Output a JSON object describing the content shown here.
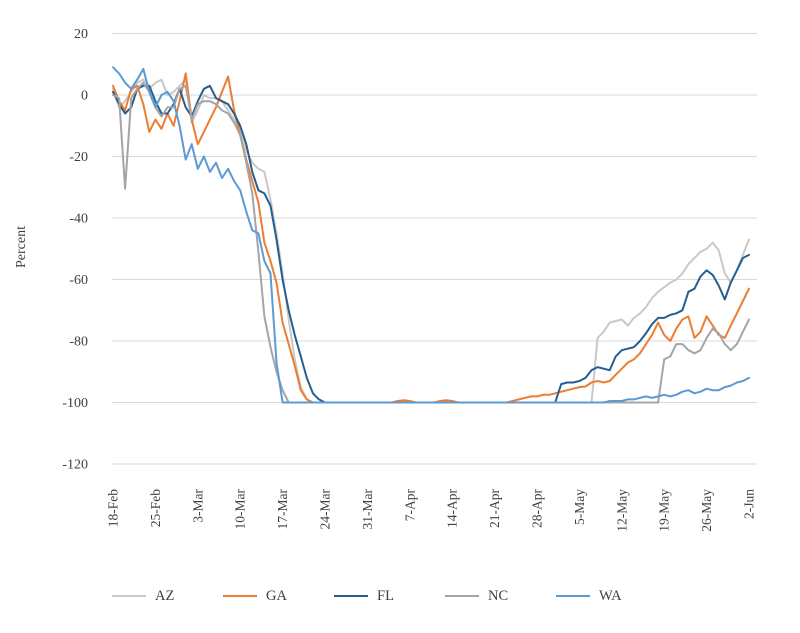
{
  "colors": {
    "background": "#ffffff",
    "gridline": "#d9d9d9",
    "axis_text": "#3f3f3f"
  },
  "chart_data": {
    "type": "line",
    "title": "",
    "xlabel": "",
    "ylabel": "Percent",
    "ylim": [
      -120,
      20
    ],
    "yticks": [
      20,
      0,
      -20,
      -40,
      -60,
      -80,
      -100,
      -120
    ],
    "grid": "horizontal",
    "legend_position": "bottom",
    "x_unit": "day",
    "days_total": 105,
    "x_tick_labels": [
      "18-Feb",
      "25-Feb",
      "3-Mar",
      "10-Mar",
      "17-Mar",
      "24-Mar",
      "31-Mar",
      "7-Apr",
      "14-Apr",
      "21-Apr",
      "28-Apr",
      "5-May",
      "12-May",
      "19-May",
      "26-May",
      "2-Jun"
    ],
    "x_tick_days": [
      0,
      7,
      14,
      21,
      28,
      35,
      42,
      49,
      56,
      63,
      70,
      77,
      84,
      91,
      98,
      105
    ],
    "series": [
      {
        "name": "AZ",
        "color": "#c9c9c9",
        "values": [
          2,
          -4,
          -2,
          1,
          4,
          5,
          2,
          4,
          5,
          0,
          1,
          3,
          5,
          -9,
          -5,
          0,
          -1,
          -1,
          -2,
          -5,
          -8,
          -11,
          -18,
          -22,
          -24,
          -25,
          -34,
          -45,
          -58,
          -73,
          -86,
          -95,
          -99,
          -100,
          -100,
          -100,
          -100,
          -100,
          -100,
          -100,
          -100,
          -100,
          -100,
          -100,
          -100,
          -100,
          -100,
          -100,
          -100,
          -100,
          -100,
          -100,
          -100,
          -100,
          -100,
          -100,
          -100,
          -100,
          -100,
          -100,
          -100,
          -100,
          -100,
          -100,
          -100,
          -100,
          -100,
          -100,
          -100,
          -100,
          -100,
          -100,
          -100,
          -100,
          -100,
          -100,
          -100,
          -100,
          -100,
          -100,
          -79,
          -77,
          -74,
          -73.5,
          -73,
          -75,
          -72.5,
          -71,
          -69,
          -66,
          -64,
          -62.5,
          -61,
          -60,
          -58,
          -55,
          -53,
          -51,
          -50,
          -48,
          -50.5,
          -58,
          -61,
          -57,
          -52,
          -47
        ]
      },
      {
        "name": "GA",
        "color": "#ed7d31",
        "values": [
          3,
          -2,
          -5,
          2,
          3,
          -3,
          -12,
          -8,
          -11,
          -6,
          -10,
          -2,
          7,
          -8,
          -16,
          -12,
          -8,
          -4,
          1,
          6,
          -5,
          -13,
          -21,
          -28,
          -35,
          -48,
          -54,
          -61,
          -74,
          -81,
          -88,
          -96,
          -99,
          -100,
          -100,
          -100,
          -100,
          -100,
          -100,
          -100,
          -100,
          -100,
          -100,
          -100,
          -100,
          -100,
          -100,
          -99.5,
          -99.3,
          -99.5,
          -100,
          -100,
          -100,
          -100,
          -99.5,
          -99.3,
          -99.5,
          -100,
          -100,
          -100,
          -100,
          -100,
          -100,
          -100,
          -100,
          -100,
          -99.5,
          -99,
          -98.5,
          -98,
          -98,
          -97.5,
          -97.5,
          -97,
          -96.5,
          -96,
          -95.5,
          -95,
          -94.8,
          -93.5,
          -93,
          -93.5,
          -93,
          -91,
          -89,
          -87,
          -86,
          -84,
          -81,
          -78,
          -74,
          -78,
          -80,
          -76,
          -73,
          -72,
          -79,
          -77,
          -72,
          -75,
          -78,
          -79,
          -75,
          -71,
          -67,
          -63
        ]
      },
      {
        "name": "FL",
        "color": "#255e91",
        "values": [
          1,
          -3,
          -6,
          -4,
          2,
          3,
          3,
          -2,
          -6,
          -6,
          -3,
          2,
          -4,
          -7,
          -2,
          2,
          3,
          -1,
          -2,
          -3,
          -6,
          -10,
          -16,
          -25,
          -31,
          -32,
          -36,
          -47,
          -60,
          -70,
          -78,
          -85,
          -92,
          -97,
          -99,
          -100,
          -100,
          -100,
          -100,
          -100,
          -100,
          -100,
          -100,
          -100,
          -100,
          -100,
          -100,
          -100,
          -100,
          -100,
          -100,
          -100,
          -100,
          -100,
          -100,
          -100,
          -100,
          -100,
          -100,
          -100,
          -100,
          -100,
          -100,
          -100,
          -100,
          -100,
          -100,
          -100,
          -100,
          -100,
          -100,
          -100,
          -100,
          -100,
          -94,
          -93.5,
          -93.5,
          -93,
          -92,
          -89.5,
          -88.5,
          -89,
          -89.5,
          -85,
          -83,
          -82.5,
          -82,
          -80,
          -77.5,
          -74.5,
          -72.5,
          -72.5,
          -71.5,
          -71,
          -70,
          -64,
          -63,
          -59,
          -57,
          -58.5,
          -62,
          -66.5,
          -61,
          -57,
          -53,
          -52
        ]
      },
      {
        "name": "NC",
        "color": "#a5a5a5",
        "values": [
          0,
          -1,
          -30.5,
          -1,
          2,
          4,
          1,
          -4,
          -7,
          -4,
          -4,
          2,
          3,
          -8,
          -3,
          -2,
          -2,
          -3,
          -5,
          -6,
          -9,
          -13,
          -22,
          -32,
          -51,
          -72,
          -82,
          -90,
          -96,
          -100,
          -100,
          -100,
          -100,
          -100,
          -100,
          -100,
          -100,
          -100,
          -100,
          -100,
          -100,
          -100,
          -100,
          -100,
          -100,
          -100,
          -100,
          -100,
          -100,
          -100,
          -100,
          -100,
          -100,
          -100,
          -100,
          -100,
          -100,
          -100,
          -100,
          -100,
          -100,
          -100,
          -100,
          -100,
          -100,
          -100,
          -100,
          -100,
          -100,
          -100,
          -100,
          -100,
          -100,
          -100,
          -100,
          -100,
          -100,
          -100,
          -100,
          -100,
          -100,
          -100,
          -100,
          -100,
          -100,
          -100,
          -100,
          -100,
          -100,
          -100,
          -100,
          -86,
          -85,
          -81,
          -81,
          -83,
          -84,
          -83,
          -79,
          -76,
          -77.5,
          -81,
          -83,
          -81,
          -77,
          -73
        ]
      },
      {
        "name": "WA",
        "color": "#5b9bd5",
        "values": [
          9,
          7,
          4,
          2,
          5,
          8.5,
          1,
          -4,
          0,
          1,
          -2,
          -10,
          -21,
          -16,
          -24,
          -20,
          -25,
          -22,
          -27,
          -24,
          -28,
          -31,
          -38,
          -44,
          -45,
          -54,
          -58,
          -87,
          -100,
          -100,
          -100,
          -100,
          -100,
          -100,
          -100,
          -100,
          -100,
          -100,
          -100,
          -100,
          -100,
          -100,
          -100,
          -100,
          -100,
          -100,
          -100,
          -100,
          -100,
          -100,
          -100,
          -100,
          -100,
          -100,
          -100,
          -100,
          -100,
          -100,
          -100,
          -100,
          -100,
          -100,
          -100,
          -100,
          -100,
          -100,
          -100,
          -100,
          -100,
          -100,
          -100,
          -100,
          -100,
          -100,
          -100,
          -100,
          -100,
          -100,
          -100,
          -100,
          -100,
          -100,
          -99.5,
          -99.5,
          -99.5,
          -99,
          -99,
          -98.5,
          -98,
          -98.5,
          -98,
          -97.5,
          -98,
          -97.5,
          -96.5,
          -96,
          -97,
          -96.5,
          -95.5,
          -96,
          -96,
          -95,
          -94.5,
          -93.5,
          -93,
          -92
        ]
      }
    ]
  }
}
